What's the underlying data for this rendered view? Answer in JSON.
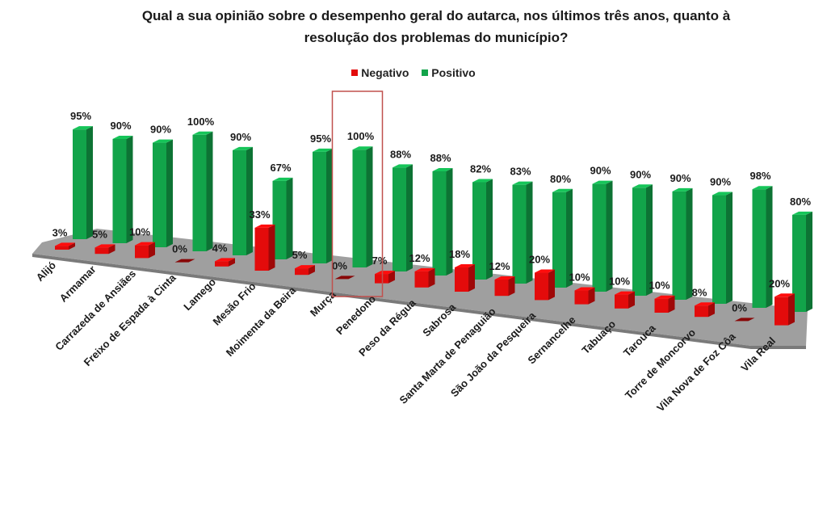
{
  "title_line1": "Qual a sua opinião sobre o desempenho geral do autarca, nos últimos três anos, quanto à",
  "title_line2": "resolução dos problemas do município?",
  "legend": [
    {
      "label": "Negativo",
      "color": "#e30b0b"
    },
    {
      "label": "Positivo",
      "color": "#12a44a"
    }
  ],
  "colors": {
    "negativo": "#e30b0b",
    "positivo": "#12a44a",
    "floor": "#9a9a9a",
    "highlight": "#c0504d"
  },
  "highlighted_category": "Murça",
  "chart_data": {
    "type": "bar",
    "title": "Qual a sua opinião sobre o desempenho geral do autarca, nos últimos três anos, quanto à resolução dos problemas do município?",
    "categories": [
      "Alijó",
      "Armamar",
      "Carrazeda de Ansiães",
      "Freixo de Espada à Cinta",
      "Lamego",
      "Mesão Frio",
      "Moimenta da Beira",
      "Murça",
      "Penedono",
      "Peso da Régua",
      "Sabrosa",
      "Santa Marta de Penaguião",
      "São João da Pesqueira",
      "Sernancelhe",
      "Tabuaço",
      "Tarouca",
      "Torre de Moncorvo",
      "Vila Nova de Foz Côa",
      "Vila Real"
    ],
    "series": [
      {
        "name": "Negativo",
        "values": [
          3,
          5,
          10,
          0,
          4,
          33,
          5,
          0,
          7,
          12,
          18,
          12,
          20,
          10,
          10,
          10,
          8,
          0,
          20
        ]
      },
      {
        "name": "Positivo",
        "values": [
          95,
          90,
          90,
          100,
          90,
          67,
          95,
          100,
          88,
          88,
          82,
          83,
          80,
          90,
          90,
          90,
          90,
          98,
          80
        ]
      }
    ],
    "value_suffix": "%",
    "legend_position": "top",
    "grid": false
  }
}
